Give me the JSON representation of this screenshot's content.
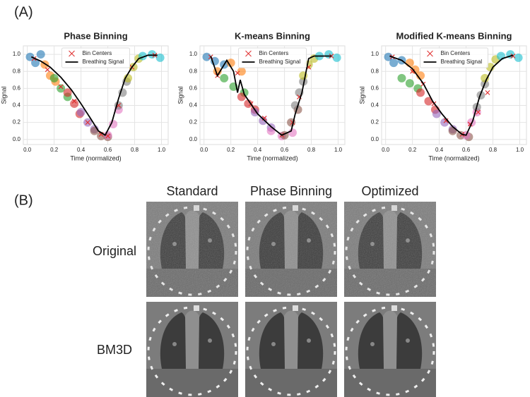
{
  "panel_a_label": "(A)",
  "chart_data": [
    {
      "type": "scatter",
      "title": "Phase Binning",
      "xlabel": "Time (normalized)",
      "ylabel": "Signal",
      "xlim": [
        -0.03,
        1.05
      ],
      "ylim": [
        -0.06,
        1.1
      ],
      "grid": true,
      "legend": "upper center",
      "xticks": [
        {
          "value": 0,
          "label": "0.0"
        },
        {
          "value": 0.2,
          "label": "0.2"
        },
        {
          "value": 0.4,
          "label": "0.4"
        },
        {
          "value": 0.6,
          "label": "0.6"
        },
        {
          "value": 0.8,
          "label": "0.8"
        },
        {
          "value": 1,
          "label": "1.0"
        }
      ],
      "yticks": [
        {
          "value": 0,
          "label": "0.0"
        },
        {
          "value": 0.2,
          "label": "0.2"
        },
        {
          "value": 0.4,
          "label": "0.4"
        },
        {
          "value": 0.6,
          "label": "0.6"
        },
        {
          "value": 0.8,
          "label": "0.8"
        },
        {
          "value": 1,
          "label": "1.0"
        }
      ],
      "point_groups": [
        {
          "color": "#1f77b4",
          "x": [
            0.02,
            0.06,
            0.1
          ],
          "values": [
            0.97,
            0.9,
            1.0
          ]
        },
        {
          "color": "#ff7f0e",
          "x": [
            0.13,
            0.17,
            0.21
          ],
          "values": [
            0.88,
            0.75,
            0.68
          ]
        },
        {
          "color": "#2ca02c",
          "x": [
            0.2,
            0.25,
            0.3
          ],
          "values": [
            0.72,
            0.6,
            0.5
          ]
        },
        {
          "color": "#d62728",
          "x": [
            0.3,
            0.35,
            0.39
          ],
          "values": [
            0.55,
            0.42,
            0.3
          ]
        },
        {
          "color": "#9467bd",
          "x": [
            0.4,
            0.45,
            0.5
          ],
          "values": [
            0.32,
            0.2,
            0.12
          ]
        },
        {
          "color": "#8c564b",
          "x": [
            0.5,
            0.55,
            0.6
          ],
          "values": [
            0.1,
            0.04,
            0.03
          ]
        },
        {
          "color": "#e377c2",
          "x": [
            0.6,
            0.64,
            0.68
          ],
          "values": [
            0.05,
            0.18,
            0.35
          ]
        },
        {
          "color": "#7f7f7f",
          "x": [
            0.68,
            0.71,
            0.74
          ],
          "values": [
            0.4,
            0.55,
            0.68
          ]
        },
        {
          "color": "#bcbd22",
          "x": [
            0.75,
            0.79,
            0.83
          ],
          "values": [
            0.72,
            0.85,
            0.95
          ]
        },
        {
          "color": "#17becf",
          "x": [
            0.86,
            0.93,
            0.99
          ],
          "values": [
            0.98,
            1.0,
            0.96
          ]
        }
      ],
      "series": [
        {
          "name": "Bin Centers",
          "color": "#e03030",
          "marker": "x",
          "x": [
            0.05,
            0.15,
            0.25,
            0.35,
            0.45,
            0.55,
            0.6,
            0.68,
            0.78,
            0.95
          ],
          "values": [
            0.95,
            0.82,
            0.62,
            0.45,
            0.2,
            0.06,
            0.04,
            0.4,
            0.85,
            0.99
          ]
        },
        {
          "name": "Breathing Signal",
          "color": "#000000",
          "x": [
            0.03,
            0.1,
            0.17,
            0.25,
            0.33,
            0.4,
            0.47,
            0.53,
            0.58,
            0.63,
            0.68,
            0.73,
            0.78,
            0.83,
            0.9,
            0.97
          ],
          "values": [
            0.97,
            0.92,
            0.85,
            0.73,
            0.58,
            0.42,
            0.25,
            0.1,
            0.05,
            0.2,
            0.48,
            0.72,
            0.85,
            0.95,
            0.99,
            0.99
          ]
        }
      ]
    },
    {
      "type": "scatter",
      "title": "K-means Binning",
      "xlabel": "Time (normalized)",
      "ylabel": "Signal",
      "xlim": [
        -0.03,
        1.05
      ],
      "ylim": [
        -0.06,
        1.1
      ],
      "grid": true,
      "legend": "upper center",
      "xticks": [
        {
          "value": 0,
          "label": "0.0"
        },
        {
          "value": 0.2,
          "label": "0.2"
        },
        {
          "value": 0.4,
          "label": "0.4"
        },
        {
          "value": 0.6,
          "label": "0.6"
        },
        {
          "value": 0.8,
          "label": "0.8"
        },
        {
          "value": 1,
          "label": "1.0"
        }
      ],
      "yticks": [
        {
          "value": 0,
          "label": "0.0"
        },
        {
          "value": 0.2,
          "label": "0.2"
        },
        {
          "value": 0.4,
          "label": "0.4"
        },
        {
          "value": 0.6,
          "label": "0.6"
        },
        {
          "value": 0.8,
          "label": "0.8"
        },
        {
          "value": 1,
          "label": "1.0"
        }
      ],
      "point_groups": [
        {
          "color": "#1f77b4",
          "x": [
            0.02,
            0.08,
            0.15
          ],
          "values": [
            0.97,
            0.92,
            0.88
          ]
        },
        {
          "color": "#ff7f0e",
          "x": [
            0.1,
            0.2,
            0.28
          ],
          "values": [
            0.8,
            0.9,
            0.8
          ]
        },
        {
          "color": "#2ca02c",
          "x": [
            0.15,
            0.22,
            0.3
          ],
          "values": [
            0.72,
            0.62,
            0.55
          ]
        },
        {
          "color": "#d62728",
          "x": [
            0.28,
            0.33,
            0.38
          ],
          "values": [
            0.5,
            0.42,
            0.35
          ]
        },
        {
          "color": "#9467bd",
          "x": [
            0.38,
            0.44,
            0.5
          ],
          "values": [
            0.32,
            0.22,
            0.14
          ]
        },
        {
          "color": "#e377c2",
          "x": [
            0.5,
            0.58,
            0.66
          ],
          "values": [
            0.1,
            0.04,
            0.08
          ]
        },
        {
          "color": "#8c564b",
          "x": [
            0.6,
            0.65,
            0.7
          ],
          "values": [
            0.05,
            0.2,
            0.35
          ]
        },
        {
          "color": "#7f7f7f",
          "x": [
            0.68,
            0.71,
            0.74
          ],
          "values": [
            0.4,
            0.55,
            0.68
          ]
        },
        {
          "color": "#bcbd22",
          "x": [
            0.74,
            0.78,
            0.82
          ],
          "values": [
            0.75,
            0.88,
            0.95
          ]
        },
        {
          "color": "#17becf",
          "x": [
            0.86,
            0.93,
            0.99
          ],
          "values": [
            0.98,
            1.0,
            0.96
          ]
        }
      ],
      "series": [
        {
          "name": "Bin Centers",
          "color": "#e03030",
          "marker": "x",
          "x": [
            0.05,
            0.1,
            0.25,
            0.35,
            0.45,
            0.58,
            0.66,
            0.71,
            0.78,
            0.95
          ],
          "values": [
            0.97,
            0.75,
            0.78,
            0.42,
            0.25,
            0.05,
            0.2,
            0.5,
            0.85,
            0.98
          ]
        },
        {
          "name": "Breathing Signal",
          "color": "#000000",
          "x": [
            0.05,
            0.1,
            0.17,
            0.22,
            0.25,
            0.27,
            0.3,
            0.4,
            0.5,
            0.58,
            0.65,
            0.68,
            0.73,
            0.78,
            0.82,
            0.95
          ],
          "values": [
            0.98,
            0.75,
            0.93,
            0.8,
            0.55,
            0.7,
            0.53,
            0.3,
            0.15,
            0.05,
            0.1,
            0.3,
            0.55,
            0.95,
            0.98,
            0.98
          ]
        }
      ]
    },
    {
      "type": "scatter",
      "title": "Modified K-means Binning",
      "xlabel": "Time (normalized)",
      "ylabel": "Signal",
      "xlim": [
        -0.03,
        1.05
      ],
      "ylim": [
        -0.06,
        1.1
      ],
      "grid": true,
      "legend": "upper center",
      "xticks": [
        {
          "value": 0,
          "label": "0.0"
        },
        {
          "value": 0.2,
          "label": "0.2"
        },
        {
          "value": 0.4,
          "label": "0.4"
        },
        {
          "value": 0.6,
          "label": "0.6"
        },
        {
          "value": 0.8,
          "label": "0.8"
        },
        {
          "value": 1,
          "label": "1.0"
        }
      ],
      "yticks": [
        {
          "value": 0,
          "label": "0.0"
        },
        {
          "value": 0.2,
          "label": "0.2"
        },
        {
          "value": 0.4,
          "label": "0.4"
        },
        {
          "value": 0.6,
          "label": "0.6"
        },
        {
          "value": 0.8,
          "label": "0.8"
        },
        {
          "value": 1,
          "label": "1.0"
        }
      ],
      "point_groups": [
        {
          "color": "#1f77b4",
          "x": [
            0.02,
            0.06,
            0.12
          ],
          "values": [
            0.97,
            0.9,
            0.93
          ]
        },
        {
          "color": "#ff7f0e",
          "x": [
            0.18,
            0.22,
            0.26
          ],
          "values": [
            0.9,
            0.82,
            0.75
          ]
        },
        {
          "color": "#2ca02c",
          "x": [
            0.12,
            0.18,
            0.24
          ],
          "values": [
            0.72,
            0.66,
            0.6
          ]
        },
        {
          "color": "#d62728",
          "x": [
            0.26,
            0.32,
            0.37
          ],
          "values": [
            0.55,
            0.45,
            0.35
          ]
        },
        {
          "color": "#9467bd",
          "x": [
            0.38,
            0.44,
            0.5
          ],
          "values": [
            0.3,
            0.2,
            0.12
          ]
        },
        {
          "color": "#8c564b",
          "x": [
            0.5,
            0.56,
            0.62
          ],
          "values": [
            0.1,
            0.05,
            0.03
          ]
        },
        {
          "color": "#e377c2",
          "x": [
            0.6,
            0.64,
            0.68
          ],
          "values": [
            0.05,
            0.2,
            0.32
          ]
        },
        {
          "color": "#7f7f7f",
          "x": [
            0.68,
            0.71,
            0.74
          ],
          "values": [
            0.38,
            0.52,
            0.65
          ]
        },
        {
          "color": "#bcbd22",
          "x": [
            0.74,
            0.78,
            0.82
          ],
          "values": [
            0.72,
            0.85,
            0.94
          ]
        },
        {
          "color": "#17becf",
          "x": [
            0.86,
            0.93,
            0.99
          ],
          "values": [
            0.98,
            1.0,
            0.96
          ]
        }
      ],
      "series": [
        {
          "name": "Bin Centers",
          "color": "#e03030",
          "marker": "x",
          "x": [
            0.05,
            0.2,
            0.28,
            0.36,
            0.45,
            0.57,
            0.63,
            0.69,
            0.76,
            0.95
          ],
          "values": [
            0.97,
            0.8,
            0.65,
            0.42,
            0.22,
            0.06,
            0.18,
            0.32,
            0.55,
            0.98
          ]
        },
        {
          "name": "Breathing Signal",
          "color": "#000000",
          "x": [
            0.03,
            0.12,
            0.2,
            0.28,
            0.35,
            0.42,
            0.5,
            0.57,
            0.6,
            0.65,
            0.7,
            0.75,
            0.8,
            0.87,
            0.95
          ],
          "values": [
            0.98,
            0.93,
            0.83,
            0.66,
            0.45,
            0.3,
            0.15,
            0.06,
            0.05,
            0.22,
            0.5,
            0.7,
            0.85,
            0.95,
            0.99
          ]
        }
      ]
    }
  ],
  "figure_b": {
    "label": "(B)",
    "columns": [
      "Standard",
      "Phase Binning",
      "Optimized"
    ],
    "rows": [
      "Original",
      "BM3D"
    ]
  }
}
